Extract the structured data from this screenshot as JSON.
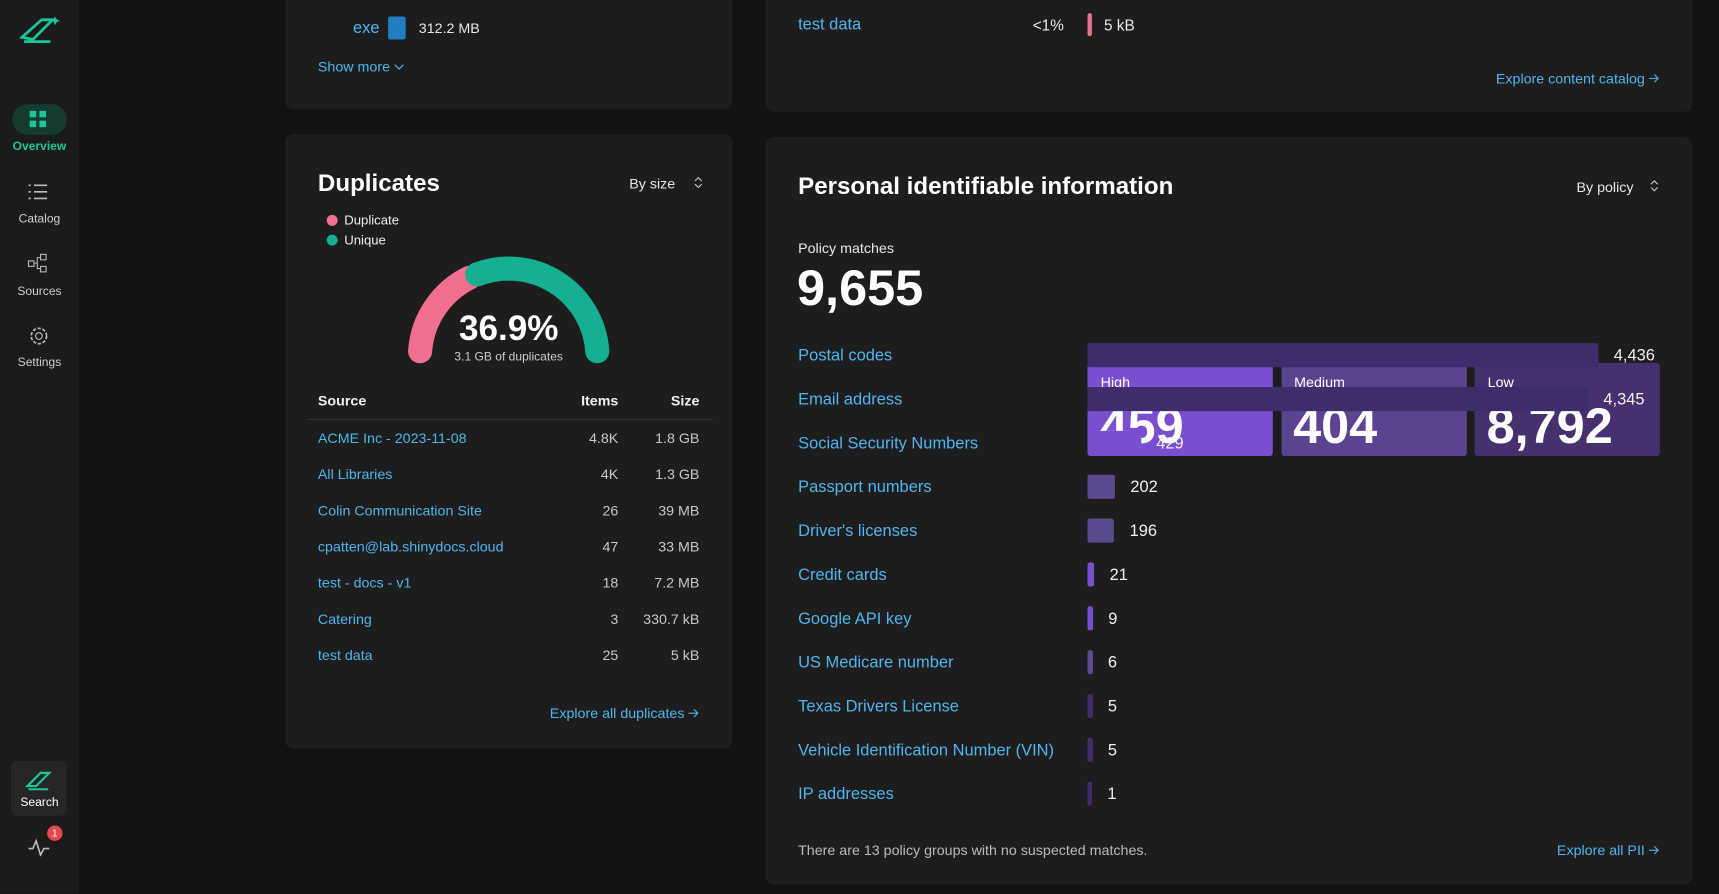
{
  "sidebar": {
    "nav": [
      "Overview",
      "Catalog",
      "Sources",
      "Settings"
    ],
    "search": "Search",
    "badge": "1"
  },
  "file_types": {
    "rows": [
      {
        "label": "exe",
        "size": "312.2 MB"
      }
    ],
    "show_more": "Show more"
  },
  "content_catalog": {
    "rows": [
      {
        "label": "test data",
        "share": "<1%",
        "size": "5 kB"
      }
    ],
    "link": "Explore content catalog"
  },
  "duplicates": {
    "title": "Duplicates",
    "sort": "By size",
    "gauge": {
      "type": "gauge",
      "value": 36.9,
      "value_label": "36.9%",
      "subtitle": "3.1 GB of duplicates",
      "series": [
        {
          "name": "Duplicate",
          "color": "#f2708f"
        },
        {
          "name": "Unique",
          "color": "#14b08f"
        }
      ]
    },
    "table": {
      "columns": [
        "Source",
        "Items",
        "Size"
      ],
      "rows": [
        [
          "ACME Inc - 2023-11-08",
          "4.8K",
          "1.8 GB"
        ],
        [
          "All Libraries",
          "4K",
          "1.3 GB"
        ],
        [
          "Colin Communication Site",
          "26",
          "39 MB"
        ],
        [
          "cpatten@lab.shinydocs.cloud",
          "47",
          "33 MB"
        ],
        [
          "test - docs - v1",
          "18",
          "7.2 MB"
        ],
        [
          "Catering",
          "3",
          "330.7 kB"
        ],
        [
          "test data",
          "25",
          "5 kB"
        ]
      ]
    },
    "link": "Explore all duplicates"
  },
  "pii": {
    "title": "Personal identifiable information",
    "sort": "By policy",
    "matches_label": "Policy matches",
    "matches": "9,655",
    "levels": [
      {
        "name": "High",
        "value": "459",
        "color": "#7a4fcf"
      },
      {
        "name": "Medium",
        "value": "404",
        "color": "#5c4392"
      },
      {
        "name": "Low",
        "value": "8,792",
        "color": "#48306f"
      }
    ],
    "chart_data": {
      "type": "hbar",
      "categories": [
        "Postal codes",
        "Email address",
        "Social Security Numbers",
        "Passport numbers",
        "Driver's licenses",
        "Credit cards",
        "Google API key",
        "US Medicare number",
        "Texas Drivers License",
        "Vehicle Identification Number (VIN)",
        "IP addresses"
      ],
      "values": [
        4436,
        4345,
        429,
        202,
        196,
        21,
        9,
        6,
        5,
        5,
        1
      ],
      "value_labels": [
        "4,436",
        "4,345",
        "429",
        "202",
        "196",
        "21",
        "9",
        "6",
        "5",
        "5",
        "1"
      ],
      "colors": [
        "#3e2c6b",
        "#3e2c6b",
        "#7a4fcf",
        "#5c4a8f",
        "#5c4a8f",
        "#7a4fcf",
        "#7a4fcf",
        "#5c4a8f",
        "#3e2c6b",
        "#3e2c6b",
        "#3e2c6b"
      ]
    },
    "footnote": "There are 13 policy groups with no suspected matches.",
    "link": "Explore all PII"
  }
}
